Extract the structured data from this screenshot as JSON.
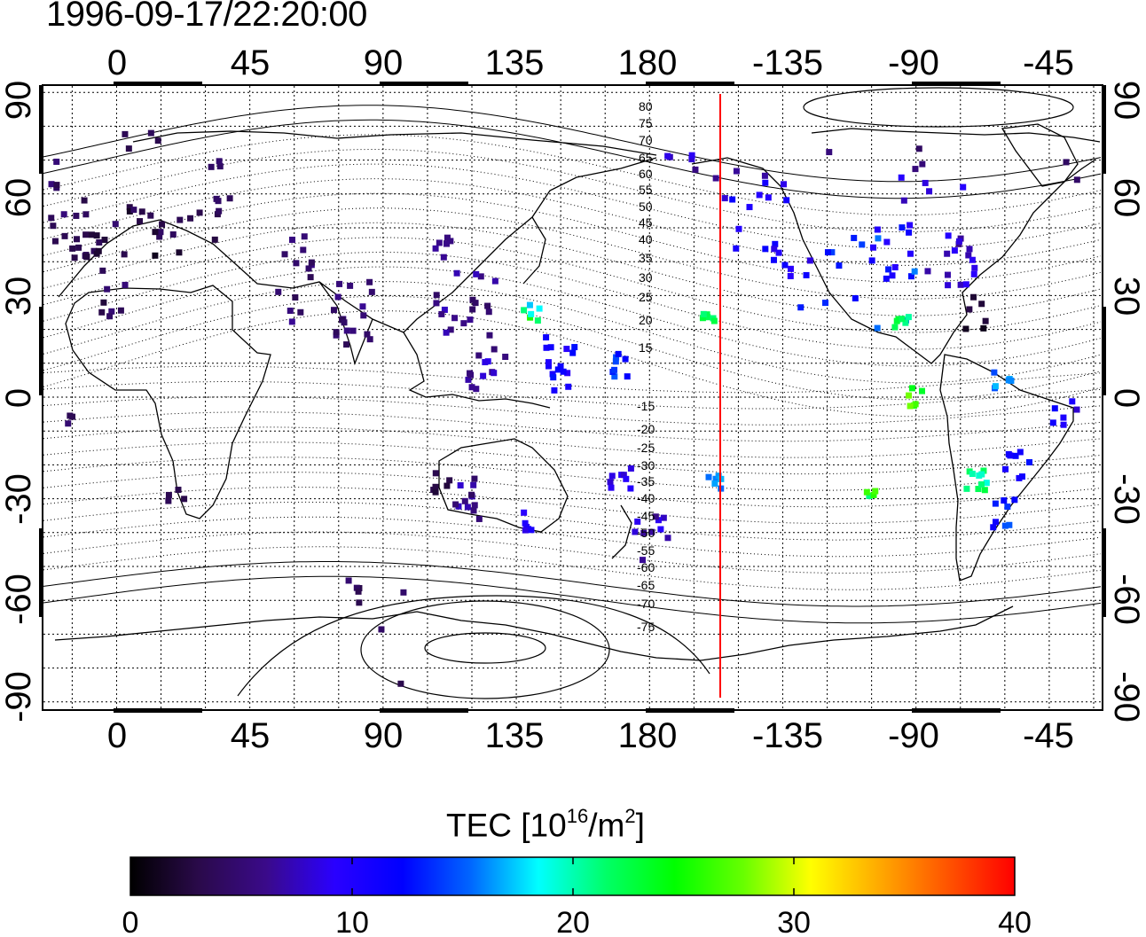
{
  "title": "1996-09-17/22:20:00",
  "map": {
    "top_lon_ticks": [
      "0",
      "45",
      "90",
      "135",
      "180",
      "-135",
      "-90",
      "-45"
    ],
    "bottom_lon_ticks": [
      "0",
      "45",
      "90",
      "135",
      "180",
      "-135",
      "-90",
      "-45"
    ],
    "left_lat_ticks": [
      "90",
      "60",
      "30",
      "0",
      "-30",
      "-60",
      "-90"
    ],
    "right_lat_ticks": [
      "90",
      "60",
      "30",
      "0",
      "-30",
      "-60",
      "-90"
    ],
    "contour_labels_north": [
      "80",
      "75",
      "70",
      "65",
      "60",
      "55",
      "50",
      "45",
      "40",
      "35",
      "30",
      "25",
      "20",
      "15"
    ],
    "contour_labels_south": [
      "-15",
      "-20",
      "-25",
      "-30",
      "-35",
      "-40",
      "-45",
      "-50",
      "-55",
      "-60",
      "-65",
      "-70",
      "-75"
    ],
    "terminator_color": "#ff0000"
  },
  "colorbar": {
    "label_main": "TEC  [10",
    "label_exp": "16",
    "label_unit": "/m",
    "label_unit_exp": "2",
    "label_close": "]",
    "ticks": [
      "0",
      "10",
      "20",
      "30",
      "40"
    ],
    "colors": [
      "#000000",
      "#2a0a4a",
      "#3a0a8a",
      "#2a00ff",
      "#0000ff",
      "#0066ff",
      "#00ffff",
      "#00ff66",
      "#00ff00",
      "#66ff00",
      "#ffff00",
      "#ffaa00",
      "#ff5500",
      "#ff0000"
    ]
  }
}
